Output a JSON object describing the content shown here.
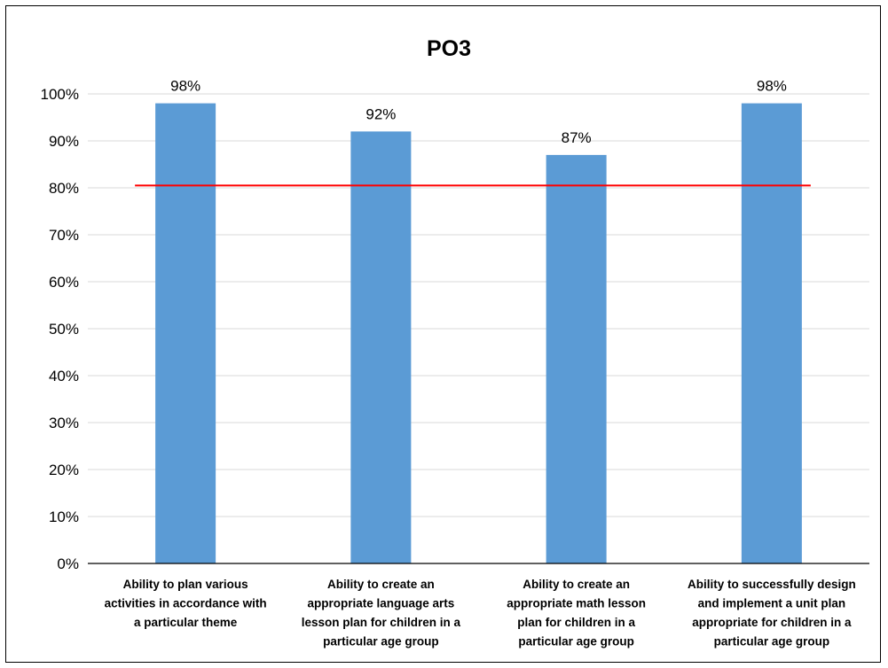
{
  "chart_data": {
    "type": "bar",
    "title": "PO3",
    "xlabel": "",
    "ylabel": "",
    "categories": [
      [
        "Ability to plan various",
        "activities in accordance with",
        "a particular theme"
      ],
      [
        "Ability to create an",
        "appropriate language arts",
        "lesson plan for children in a",
        "particular age group"
      ],
      [
        "Ability to create an",
        "appropriate math lesson",
        "plan for children in a",
        "particular age group"
      ],
      [
        "Ability to successfully design",
        "and implement a unit plan",
        "appropriate for children in a",
        "particular age group"
      ]
    ],
    "values": [
      98,
      92,
      87,
      98
    ],
    "data_labels": [
      "98%",
      "92%",
      "87%",
      "98%"
    ],
    "ylim": [
      0,
      100
    ],
    "yticks": [
      0,
      10,
      20,
      30,
      40,
      50,
      60,
      70,
      80,
      90,
      100
    ],
    "ytick_labels": [
      "0%",
      "10%",
      "20%",
      "30%",
      "40%",
      "50%",
      "60%",
      "70%",
      "80%",
      "90%",
      "100%"
    ],
    "grid": true,
    "legend": "none",
    "reference_line": {
      "value": 80.5,
      "color": "#ff0000"
    },
    "colors": {
      "bar": "#5b9bd5",
      "grid": "#d9d9d9",
      "axis": "#000000"
    }
  }
}
